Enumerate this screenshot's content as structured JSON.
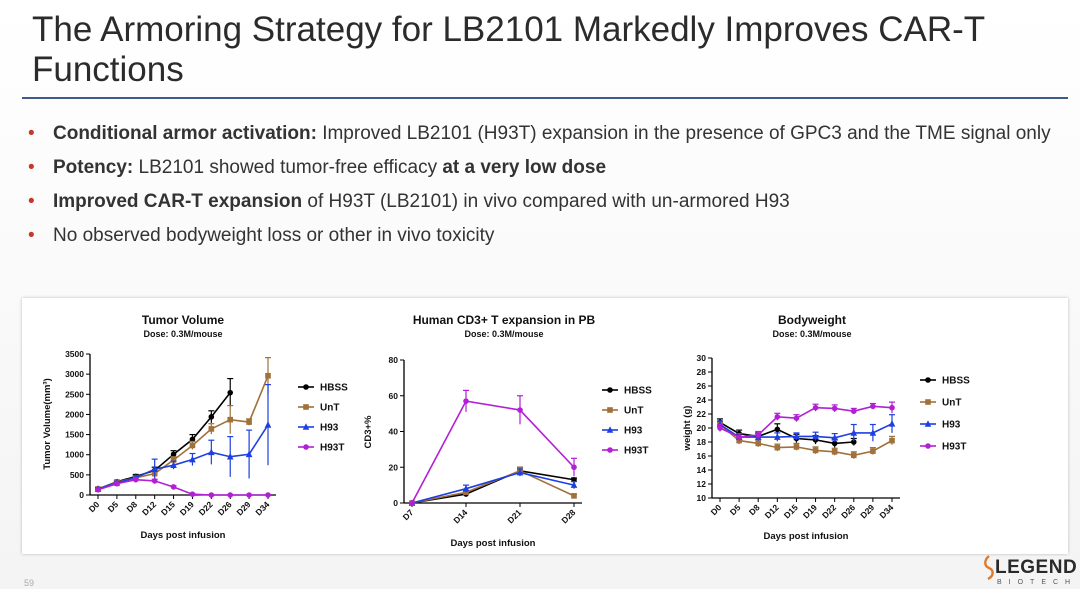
{
  "title": "The Armoring Strategy for LB2101 Markedly Improves CAR-T Functions",
  "bullets": [
    {
      "bold": "Conditional armor activation:",
      "text": " Improved LB2101 (H93T) expansion in the presence of GPC3 and the TME signal only"
    },
    {
      "bold": "Potency:",
      "text": " LB2101 showed tumor-free efficacy ",
      "bold2": "at a very low dose"
    },
    {
      "bold": "Improved CAR-T expansion",
      "text": " of H93T (LB2101) in vivo compared with un-armored H93"
    },
    {
      "text": "No observed bodyweight loss or other in vivo toxicity"
    }
  ],
  "page_number": "59",
  "logo": {
    "word": "LEGEND",
    "sub": "BIOTECH"
  },
  "colors": {
    "HBSS": "#000000",
    "UnT": "#a0713a",
    "H93": "#1f3fe0",
    "H93T": "#b21fd6",
    "accent": "#3c5a8c"
  },
  "chart_data": [
    {
      "type": "line",
      "title": "Tumor Volume",
      "subtitle": "Dose: 0.3M/mouse",
      "xlabel": "Days post infusion",
      "ylabel": "Tumor Volume(mm³)",
      "categories": [
        "D0",
        "D5",
        "D8",
        "D12",
        "D15",
        "D19",
        "D22",
        "D26",
        "D29",
        "D34"
      ],
      "ylim": [
        0,
        3500
      ],
      "yticks": [
        "0",
        "500",
        "1000",
        "1500",
        "2000",
        "2500",
        "3000",
        "3500"
      ],
      "legend": "right",
      "series": [
        {
          "name": "HBSS",
          "values": [
            150,
            330,
            460,
            610,
            1010,
            1380,
            1940,
            2540,
            null,
            null
          ],
          "errors": [
            30,
            40,
            50,
            80,
            90,
            120,
            150,
            350,
            null,
            null
          ]
        },
        {
          "name": "UnT",
          "values": [
            150,
            320,
            430,
            530,
            870,
            1230,
            1640,
            1870,
            1810,
            2960
          ],
          "errors": [
            30,
            40,
            50,
            60,
            80,
            100,
            130,
            350,
            80,
            450
          ]
        },
        {
          "name": "H93",
          "values": [
            150,
            300,
            430,
            640,
            740,
            880,
            1060,
            950,
            1010,
            1740
          ],
          "errors": [
            30,
            40,
            50,
            250,
            100,
            150,
            300,
            500,
            600,
            1000
          ]
        },
        {
          "name": "H93T",
          "values": [
            130,
            280,
            380,
            350,
            200,
            20,
            0,
            0,
            0,
            0
          ],
          "errors": [
            20,
            30,
            40,
            40,
            30,
            10,
            0,
            0,
            0,
            0
          ]
        }
      ]
    },
    {
      "type": "line",
      "title": "Human CD3+ T expansion in PB",
      "subtitle": "Dose: 0.3M/mouse",
      "xlabel": "Days post infusion",
      "ylabel": "CD3+%",
      "categories": [
        "D7",
        "D14",
        "D21",
        "D28"
      ],
      "ylim": [
        0,
        80
      ],
      "yticks": [
        "0",
        "20",
        "40",
        "60",
        "80"
      ],
      "legend": "right",
      "series": [
        {
          "name": "HBSS",
          "values": [
            0,
            5,
            18,
            13
          ],
          "errors": [
            0,
            1,
            2,
            1
          ]
        },
        {
          "name": "UnT",
          "values": [
            0,
            6,
            18,
            4
          ],
          "errors": [
            0,
            1,
            2,
            1
          ]
        },
        {
          "name": "H93",
          "values": [
            0,
            8,
            17,
            10
          ],
          "errors": [
            0,
            2,
            2,
            2
          ]
        },
        {
          "name": "H93T",
          "values": [
            0,
            57,
            52,
            20
          ],
          "errors": [
            0,
            6,
            8,
            5
          ]
        }
      ]
    },
    {
      "type": "line",
      "title": "Bodyweight",
      "subtitle": "Dose: 0.3M/mouse",
      "xlabel": "Days post infusion",
      "ylabel": "weight (g)",
      "categories": [
        "D0",
        "D5",
        "D8",
        "D12",
        "D15",
        "D19",
        "D22",
        "D26",
        "D29",
        "D34"
      ],
      "ylim": [
        10,
        30
      ],
      "yticks": [
        "10",
        "12",
        "14",
        "16",
        "18",
        "20",
        "22",
        "24",
        "26",
        "28",
        "30"
      ],
      "legend": "right",
      "series": [
        {
          "name": "HBSS",
          "values": [
            20.8,
            19.2,
            18.8,
            19.8,
            18.5,
            18.3,
            17.8,
            18.0,
            null,
            null
          ],
          "errors": [
            0.5,
            0.5,
            0.5,
            0.8,
            0.6,
            0.6,
            0.6,
            0.5,
            null,
            null
          ]
        },
        {
          "name": "UnT",
          "values": [
            20.5,
            18.2,
            17.8,
            17.2,
            17.3,
            16.8,
            16.6,
            16.1,
            16.7,
            18.2
          ],
          "errors": [
            0.5,
            0.5,
            0.5,
            0.5,
            0.5,
            0.5,
            0.5,
            0.5,
            0.5,
            0.6
          ]
        },
        {
          "name": "H93",
          "values": [
            20.5,
            18.7,
            18.7,
            18.7,
            18.8,
            18.8,
            18.6,
            19.3,
            19.3,
            20.6
          ],
          "errors": [
            0.5,
            0.5,
            0.5,
            0.6,
            0.5,
            0.6,
            0.6,
            1.2,
            1.2,
            1.3
          ]
        },
        {
          "name": "H93T",
          "values": [
            20.0,
            18.7,
            19.0,
            21.6,
            21.4,
            22.9,
            22.8,
            22.4,
            23.1,
            22.9
          ],
          "errors": [
            0.5,
            0.5,
            0.5,
            0.5,
            0.5,
            0.5,
            0.5,
            0.4,
            0.4,
            0.8
          ]
        }
      ]
    }
  ]
}
